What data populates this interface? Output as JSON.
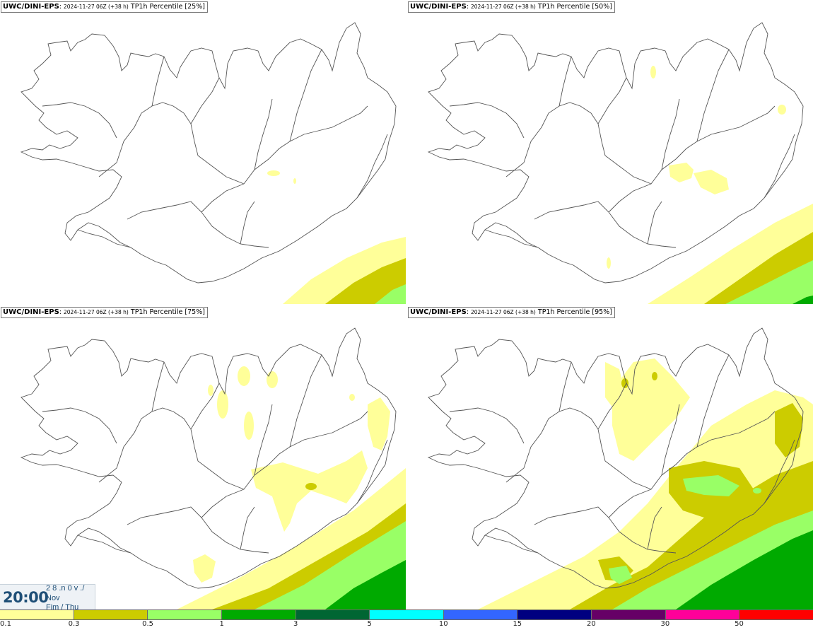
{
  "panels": [
    {
      "model": "UWC/DINI-EPS",
      "run": "2024-11-27 06Z (+38 h)",
      "field": "TP1h Percentile [25%]"
    },
    {
      "model": "UWC/DINI-EPS",
      "run": "2024-11-27 06Z (+38 h)",
      "field": "TP1h Percentile [50%]"
    },
    {
      "model": "UWC/DINI-EPS",
      "run": "2024-11-27 06Z (+38 h)",
      "field": "TP1h Percentile [75%]"
    },
    {
      "model": "UWC/DINI-EPS",
      "run": "2024-11-27 06Z (+38 h)",
      "field": "TP1h Percentile [95%]"
    }
  ],
  "valid_time": {
    "clock": "20:00",
    "line1": "2 8 .n 0 v ./",
    "line2": "Nov",
    "line3": "Fim / Thu"
  },
  "legend": {
    "labels": [
      "0.1",
      "0.3",
      "0.5",
      "1",
      "3",
      "5",
      "10",
      "15",
      "20",
      "30",
      "50"
    ],
    "colors": [
      "#ffff99",
      "#cccc00",
      "#99ff66",
      "#00aa00",
      "#006633",
      "#00ffff",
      "#3366ff",
      "#000080",
      "#660066",
      "#ff0099",
      "#ff0000"
    ]
  },
  "colors": {
    "level_0_1": "#ffff99",
    "level_0_3": "#cccc00",
    "level_0_5": "#99ff66",
    "level_1": "#00aa00",
    "coastline": "#555555"
  }
}
